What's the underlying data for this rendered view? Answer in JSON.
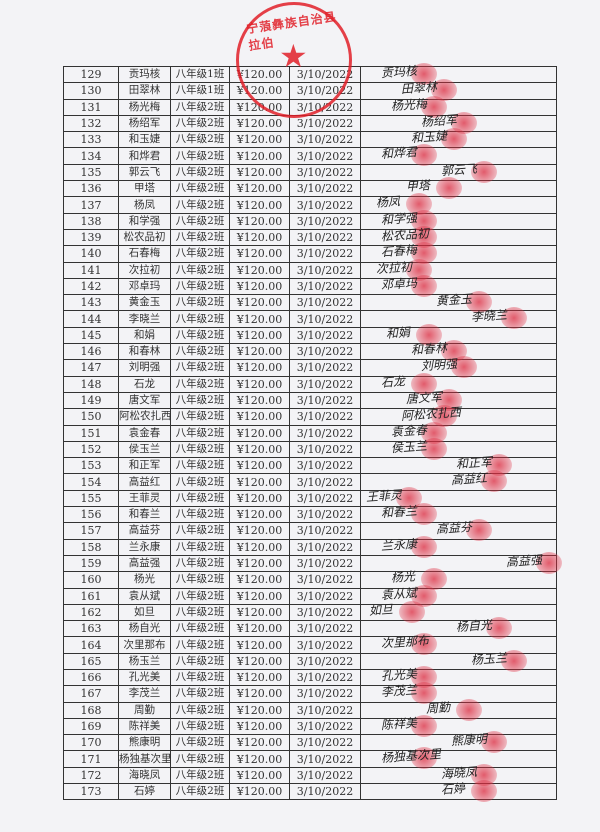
{
  "seal": {
    "text": "宁蒗彝族自治县拉伯",
    "color": "#e11e28"
  },
  "rows": [
    {
      "no": "129",
      "name": "贡玛核",
      "class": "八年级1班",
      "amount": "¥120.00",
      "date": "3/10/2022",
      "sign": "贡玛核"
    },
    {
      "no": "130",
      "name": "田翠林",
      "class": "八年级1班",
      "amount": "¥120.00",
      "date": "3/10/2022",
      "sign": "田翠林"
    },
    {
      "no": "131",
      "name": "杨光梅",
      "class": "八年级2班",
      "amount": "¥120.00",
      "date": "3/10/2022",
      "sign": "杨光梅"
    },
    {
      "no": "132",
      "name": "杨绍军",
      "class": "八年级2班",
      "amount": "¥120.00",
      "date": "3/10/2022",
      "sign": "杨绍军"
    },
    {
      "no": "133",
      "name": "和玉婕",
      "class": "八年级2班",
      "amount": "¥120.00",
      "date": "3/10/2022",
      "sign": "和玉婕"
    },
    {
      "no": "134",
      "name": "和烨君",
      "class": "八年级2班",
      "amount": "¥120.00",
      "date": "3/10/2022",
      "sign": "和烨君"
    },
    {
      "no": "135",
      "name": "郭云飞",
      "class": "八年级2班",
      "amount": "¥120.00",
      "date": "3/10/2022",
      "sign": "郭云飞"
    },
    {
      "no": "136",
      "name": "甲塔",
      "class": "八年级2班",
      "amount": "¥120.00",
      "date": "3/10/2022",
      "sign": "甲塔"
    },
    {
      "no": "137",
      "name": "杨凤",
      "class": "八年级2班",
      "amount": "¥120.00",
      "date": "3/10/2022",
      "sign": "杨凤"
    },
    {
      "no": "138",
      "name": "和学强",
      "class": "八年级2班",
      "amount": "¥120.00",
      "date": "3/10/2022",
      "sign": "和学强"
    },
    {
      "no": "139",
      "name": "松农品初",
      "class": "八年级2班",
      "amount": "¥120.00",
      "date": "3/10/2022",
      "sign": "松农品初"
    },
    {
      "no": "140",
      "name": "石春梅",
      "class": "八年级2班",
      "amount": "¥120.00",
      "date": "3/10/2022",
      "sign": "石春梅"
    },
    {
      "no": "141",
      "name": "次拉初",
      "class": "八年级2班",
      "amount": "¥120.00",
      "date": "3/10/2022",
      "sign": "次拉初"
    },
    {
      "no": "142",
      "name": "邓卓玛",
      "class": "八年级2班",
      "amount": "¥120.00",
      "date": "3/10/2022",
      "sign": "邓卓玛"
    },
    {
      "no": "143",
      "name": "黄金玉",
      "class": "八年级2班",
      "amount": "¥120.00",
      "date": "3/10/2022",
      "sign": "黄金玉"
    },
    {
      "no": "144",
      "name": "李晓兰",
      "class": "八年级2班",
      "amount": "¥120.00",
      "date": "3/10/2022",
      "sign": "李晓兰"
    },
    {
      "no": "145",
      "name": "和娟",
      "class": "八年级2班",
      "amount": "¥120.00",
      "date": "3/10/2022",
      "sign": "和娟"
    },
    {
      "no": "146",
      "name": "和春林",
      "class": "八年级2班",
      "amount": "¥120.00",
      "date": "3/10/2022",
      "sign": "和春林"
    },
    {
      "no": "147",
      "name": "刘明强",
      "class": "八年级2班",
      "amount": "¥120.00",
      "date": "3/10/2022",
      "sign": "刘明强"
    },
    {
      "no": "148",
      "name": "石龙",
      "class": "八年级2班",
      "amount": "¥120.00",
      "date": "3/10/2022",
      "sign": "石龙"
    },
    {
      "no": "149",
      "name": "唐文军",
      "class": "八年级2班",
      "amount": "¥120.00",
      "date": "3/10/2022",
      "sign": "唐文军"
    },
    {
      "no": "150",
      "name": "阿松农扎西",
      "class": "八年级2班",
      "amount": "¥120.00",
      "date": "3/10/2022",
      "sign": "阿松农扎西"
    },
    {
      "no": "151",
      "name": "袁金春",
      "class": "八年级2班",
      "amount": "¥120.00",
      "date": "3/10/2022",
      "sign": "袁金春"
    },
    {
      "no": "152",
      "name": "侯玉兰",
      "class": "八年级2班",
      "amount": "¥120.00",
      "date": "3/10/2022",
      "sign": "侯玉兰"
    },
    {
      "no": "153",
      "name": "和正军",
      "class": "八年级2班",
      "amount": "¥120.00",
      "date": "3/10/2022",
      "sign": "和正军"
    },
    {
      "no": "154",
      "name": "高益红",
      "class": "八年级2班",
      "amount": "¥120.00",
      "date": "3/10/2022",
      "sign": "高益红"
    },
    {
      "no": "155",
      "name": "王菲灵",
      "class": "八年级2班",
      "amount": "¥120.00",
      "date": "3/10/2022",
      "sign": "王菲灵"
    },
    {
      "no": "156",
      "name": "和春兰",
      "class": "八年级2班",
      "amount": "¥120.00",
      "date": "3/10/2022",
      "sign": "和春兰"
    },
    {
      "no": "157",
      "name": "高益芬",
      "class": "八年级2班",
      "amount": "¥120.00",
      "date": "3/10/2022",
      "sign": "高益芬"
    },
    {
      "no": "158",
      "name": "兰永康",
      "class": "八年级2班",
      "amount": "¥120.00",
      "date": "3/10/2022",
      "sign": "兰永康"
    },
    {
      "no": "159",
      "name": "高益强",
      "class": "八年级2班",
      "amount": "¥120.00",
      "date": "3/10/2022",
      "sign": "高益强"
    },
    {
      "no": "160",
      "name": "杨光",
      "class": "八年级2班",
      "amount": "¥120.00",
      "date": "3/10/2022",
      "sign": "杨光"
    },
    {
      "no": "161",
      "name": "袁从斌",
      "class": "八年级2班",
      "amount": "¥120.00",
      "date": "3/10/2022",
      "sign": "袁从斌"
    },
    {
      "no": "162",
      "name": "如旦",
      "class": "八年级2班",
      "amount": "¥120.00",
      "date": "3/10/2022",
      "sign": "如旦"
    },
    {
      "no": "163",
      "name": "杨自光",
      "class": "八年级2班",
      "amount": "¥120.00",
      "date": "3/10/2022",
      "sign": "杨自光"
    },
    {
      "no": "164",
      "name": "次里那布",
      "class": "八年级2班",
      "amount": "¥120.00",
      "date": "3/10/2022",
      "sign": "次里那布"
    },
    {
      "no": "165",
      "name": "杨玉兰",
      "class": "八年级2班",
      "amount": "¥120.00",
      "date": "3/10/2022",
      "sign": "杨玉兰"
    },
    {
      "no": "166",
      "name": "孔光美",
      "class": "八年级2班",
      "amount": "¥120.00",
      "date": "3/10/2022",
      "sign": "孔光美"
    },
    {
      "no": "167",
      "name": "李茂兰",
      "class": "八年级2班",
      "amount": "¥120.00",
      "date": "3/10/2022",
      "sign": "李茂兰"
    },
    {
      "no": "168",
      "name": "周勤",
      "class": "八年级2班",
      "amount": "¥120.00",
      "date": "3/10/2022",
      "sign": "周勤"
    },
    {
      "no": "169",
      "name": "陈祥美",
      "class": "八年级2班",
      "amount": "¥120.00",
      "date": "3/10/2022",
      "sign": "陈祥美"
    },
    {
      "no": "170",
      "name": "熊康明",
      "class": "八年级2班",
      "amount": "¥120.00",
      "date": "3/10/2022",
      "sign": "熊康明"
    },
    {
      "no": "171",
      "name": "杨独基次里",
      "class": "八年级2班",
      "amount": "¥120.00",
      "date": "3/10/2022",
      "sign": "杨独基次里"
    },
    {
      "no": "172",
      "name": "海晓凤",
      "class": "八年级2班",
      "amount": "¥120.00",
      "date": "3/10/2022",
      "sign": "海晓凤"
    },
    {
      "no": "173",
      "name": "石婷",
      "class": "八年级2班",
      "amount": "¥120.00",
      "date": "3/10/2022",
      "sign": "石婷"
    }
  ]
}
